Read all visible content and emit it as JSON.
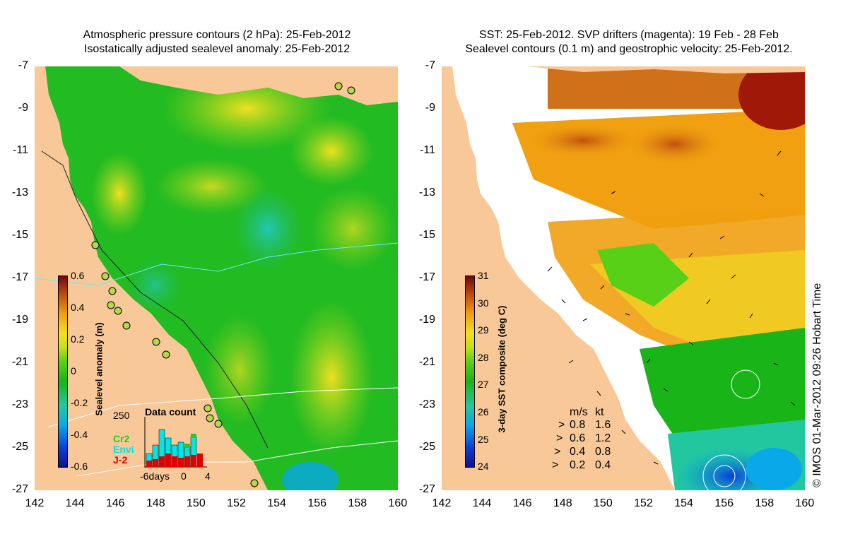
{
  "titles": {
    "left_line1": "Atmospheric pressure contours (2 hPa): 25-Feb-2012",
    "left_line2": "Isostatically adjusted sealevel anomaly: 25-Feb-2012",
    "right_line1": "SST: 25-Feb-2012. SVP drifters (magenta): 19 Feb - 28 Feb",
    "right_line2": "Sealevel contours (0.1 m) and geostrophic velocity: 25-Feb-2012."
  },
  "axes": {
    "y_ticks": [
      "-7",
      "-9",
      "-11",
      "-13",
      "-15",
      "-17",
      "-19",
      "-21",
      "-23",
      "-25",
      "-27"
    ],
    "x_ticks": [
      "142",
      "144",
      "146",
      "148",
      "150",
      "152",
      "154",
      "156",
      "158",
      "160"
    ]
  },
  "left_colorbar": {
    "label": "Sealevel anomaly (m)",
    "ticks": [
      "0.6",
      "0.4",
      "0.2",
      "0",
      "-0.2",
      "-0.4",
      "-0.6"
    ]
  },
  "right_colorbar": {
    "label": "3-day SST composite (deg C)",
    "ticks": [
      "31",
      "30",
      "29",
      "28",
      "27",
      "26",
      "25",
      "24"
    ]
  },
  "data_count": {
    "title": "Data count",
    "y_max": "250",
    "x_labels": [
      "-6days",
      "0",
      "4"
    ],
    "satellites": [
      {
        "name": "Cr2",
        "color": "#22cc22"
      },
      {
        "name": "Envi",
        "color": "#00e5e5"
      },
      {
        "name": "J-2",
        "color": "#e00000"
      }
    ]
  },
  "velocity_legend": {
    "header_ms": "m/s",
    "header_kt": "kt",
    "rows": [
      {
        "ms": "0.8",
        "kt": "1.6"
      },
      {
        "ms": "0.6",
        "kt": "1.2"
      },
      {
        "ms": "0.4",
        "kt": "0.8"
      },
      {
        "ms": "0.2",
        "kt": "0.4"
      }
    ]
  },
  "credit": "© IMOS 01-Mar-2012 09:26 Hobart Time",
  "colors": {
    "land": "#f8c898",
    "sea_green": "#22bb22",
    "no_data": "#ffffff"
  }
}
